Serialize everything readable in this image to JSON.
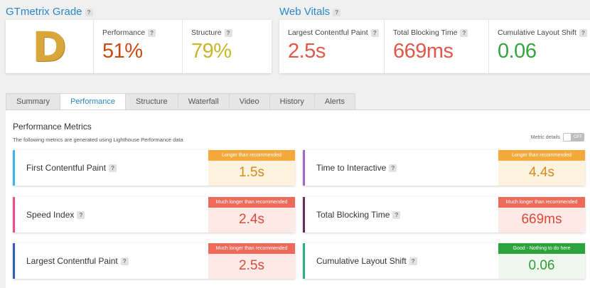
{
  "grade_section": {
    "title": "GTmetrix Grade",
    "grade": "D",
    "performance": {
      "label": "Performance",
      "value": "51%",
      "color": "#c84b16"
    },
    "structure": {
      "label": "Structure",
      "value": "79%",
      "color": "#c9b52a"
    }
  },
  "vitals_section": {
    "title": "Web Vitals",
    "items": [
      {
        "label": "Largest Contentful Paint",
        "value": "2.5s",
        "color": "#e0584b"
      },
      {
        "label": "Total Blocking Time",
        "value": "669ms",
        "color": "#e0584b"
      },
      {
        "label": "Cumulative Layout Shift",
        "value": "0.06",
        "color": "#35a33f"
      }
    ]
  },
  "help_glyph": "?",
  "tabs": [
    {
      "label": "Summary",
      "active": false
    },
    {
      "label": "Performance",
      "active": true
    },
    {
      "label": "Structure",
      "active": false
    },
    {
      "label": "Waterfall",
      "active": false
    },
    {
      "label": "Video",
      "active": false
    },
    {
      "label": "History",
      "active": false
    },
    {
      "label": "Alerts",
      "active": false
    }
  ],
  "performance_metrics": {
    "title": "Performance Metrics",
    "subtitle": "The following metrics are generated using Lighthouse Performance data",
    "toggle": {
      "label": "Metric details",
      "state": "OFF"
    },
    "metrics": [
      {
        "label": "First Contentful Paint",
        "badge": "Longer than recommended",
        "value": "1.5s",
        "bar_color": "#3ab5e6",
        "status": "orange"
      },
      {
        "label": "Time to Interactive",
        "badge": "Longer than recommended",
        "value": "4.4s",
        "bar_color": "#a565c9",
        "status": "orange"
      },
      {
        "label": "Speed Index",
        "badge": "Much longer than recommended",
        "value": "2.4s",
        "bar_color": "#ec4f8a",
        "status": "red"
      },
      {
        "label": "Total Blocking Time",
        "badge": "Much longer than recommended",
        "value": "669ms",
        "bar_color": "#6b2c5e",
        "status": "red"
      },
      {
        "label": "Largest Contentful Paint",
        "badge": "Much longer than recommended",
        "value": "2.5s",
        "bar_color": "#2f5fb6",
        "status": "red"
      },
      {
        "label": "Cumulative Layout Shift",
        "badge": "Good - Nothing to do here",
        "value": "0.06",
        "bar_color": "#2dae8a",
        "status": "green"
      }
    ]
  }
}
